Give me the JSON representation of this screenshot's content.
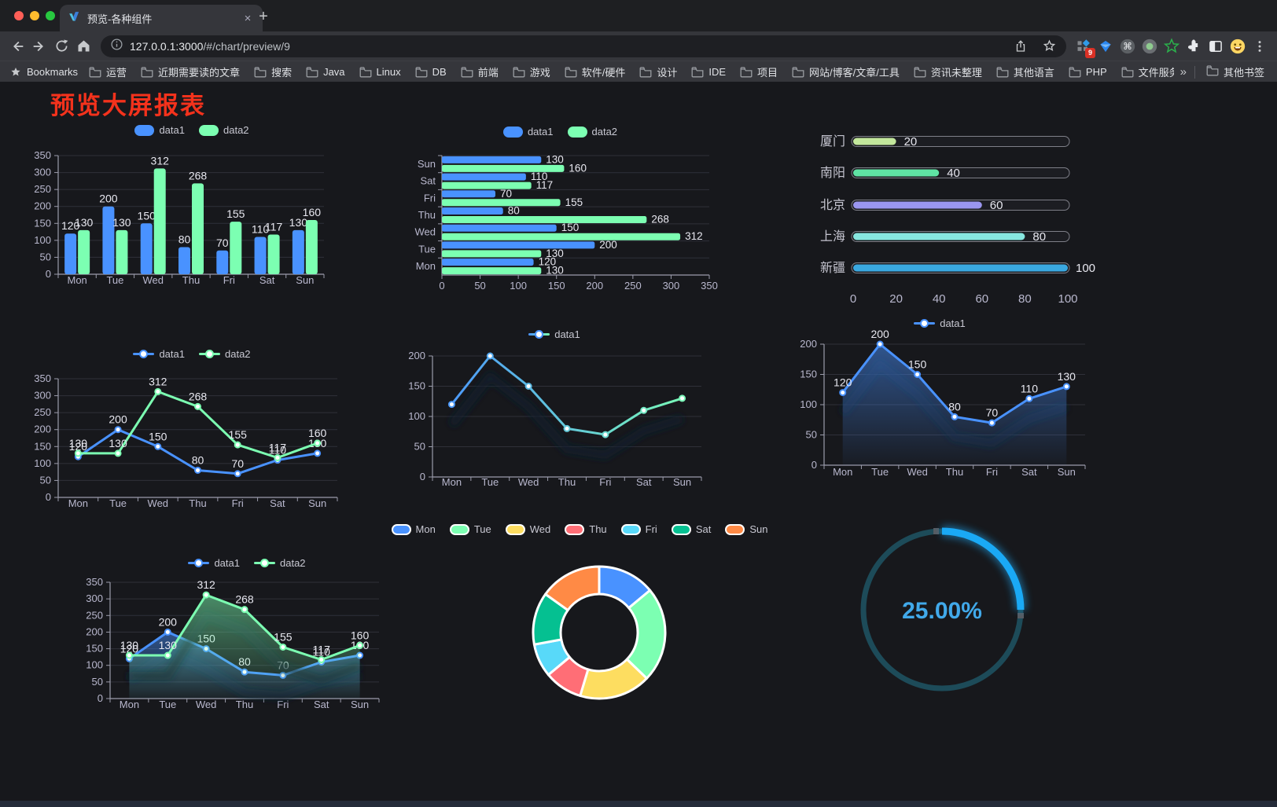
{
  "browser": {
    "tab_title": "预览-各种组件",
    "tab_close": "×",
    "new_tab": "+",
    "url_host": "127.0.0.1:3000",
    "url_path": "/#/chart/preview/9",
    "bookmarks_label": "Bookmarks",
    "bookmark_items": [
      "运营",
      "近期需要读的文章",
      "搜索",
      "Java",
      "Linux",
      "DB",
      "前端",
      "游戏",
      "软件/硬件",
      "设计",
      "IDE",
      "项目",
      "网站/博客/文章/工具",
      "资讯未整理",
      "其他语言",
      "PHP",
      "文件服务器"
    ],
    "bookmarks_overflow": "»",
    "other_bookmarks": "其他书签",
    "extension_badge": "9"
  },
  "page": {
    "title": "预览大屏报表",
    "title_color": "#f4321c",
    "background": "#17181c"
  },
  "chart_data": [
    {
      "id": "bar-weekly",
      "type": "bar",
      "categories": [
        "Mon",
        "Tue",
        "Wed",
        "Thu",
        "Fri",
        "Sat",
        "Sun"
      ],
      "series": [
        {
          "name": "data1",
          "color": "#4992ff",
          "values": [
            120,
            200,
            150,
            80,
            70,
            110,
            130
          ]
        },
        {
          "name": "data2",
          "color": "#7cffb2",
          "values": [
            130,
            130,
            312,
            268,
            155,
            117,
            160
          ]
        }
      ],
      "ylim": [
        0,
        350
      ],
      "yticks": [
        0,
        50,
        100,
        150,
        200,
        250,
        300,
        350
      ],
      "legend_position": "top",
      "grid": true
    },
    {
      "id": "hbar-weekly",
      "type": "bar-horizontal",
      "categories": [
        "Sun",
        "Sat",
        "Fri",
        "Thu",
        "Wed",
        "Tue",
        "Mon"
      ],
      "series": [
        {
          "name": "data1",
          "color": "#4992ff",
          "values": [
            130,
            110,
            70,
            80,
            150,
            200,
            120
          ]
        },
        {
          "name": "data2",
          "color": "#7cffb2",
          "values": [
            160,
            117,
            155,
            268,
            312,
            130,
            130
          ]
        }
      ],
      "xlim": [
        0,
        350
      ],
      "xticks": [
        0,
        50,
        100,
        150,
        200,
        250,
        300,
        350
      ],
      "legend_position": "top",
      "grid": true
    },
    {
      "id": "progress-cities",
      "type": "bar-horizontal",
      "items": [
        {
          "label": "厦门",
          "value": 20,
          "color": "#c3e79c"
        },
        {
          "label": "南阳",
          "value": 40,
          "color": "#5fe3a4"
        },
        {
          "label": "北京",
          "value": 60,
          "color": "#9a96f0"
        },
        {
          "label": "上海",
          "value": 80,
          "color": "#87e6df"
        },
        {
          "label": "新疆",
          "value": 100,
          "color": "#3aa8e0"
        }
      ],
      "xlim": [
        0,
        100
      ],
      "xticks": [
        0,
        20,
        40,
        60,
        80,
        100
      ]
    },
    {
      "id": "line-weekly",
      "type": "line",
      "categories": [
        "Mon",
        "Tue",
        "Wed",
        "Thu",
        "Fri",
        "Sat",
        "Sun"
      ],
      "series": [
        {
          "name": "data1",
          "color": "#4992ff",
          "values": [
            120,
            200,
            150,
            80,
            70,
            110,
            130
          ]
        },
        {
          "name": "data2",
          "color": "#7cffb2",
          "values": [
            130,
            130,
            312,
            268,
            155,
            117,
            160
          ]
        }
      ],
      "ylim": [
        0,
        350
      ],
      "yticks": [
        0,
        50,
        100,
        150,
        200,
        250,
        300,
        350
      ],
      "legend_position": "top",
      "grid": true
    },
    {
      "id": "line-gradient",
      "type": "line",
      "categories": [
        "Mon",
        "Tue",
        "Wed",
        "Thu",
        "Fri",
        "Sat",
        "Sun"
      ],
      "series": [
        {
          "name": "data1",
          "colors": [
            "#4992ff",
            "#7cffb2"
          ],
          "values": [
            120,
            200,
            150,
            80,
            70,
            110,
            130
          ]
        }
      ],
      "ylim": [
        0,
        200
      ],
      "yticks": [
        0,
        50,
        100,
        150,
        200
      ],
      "legend_position": "top",
      "grid": true
    },
    {
      "id": "area-single",
      "type": "area",
      "categories": [
        "Mon",
        "Tue",
        "Wed",
        "Thu",
        "Fri",
        "Sat",
        "Sun"
      ],
      "series": [
        {
          "name": "data1",
          "color": "#4992ff",
          "values": [
            120,
            200,
            150,
            80,
            70,
            110,
            130
          ]
        }
      ],
      "ylim": [
        0,
        200
      ],
      "yticks": [
        0,
        50,
        100,
        150,
        200
      ],
      "legend_position": "top",
      "grid": true
    },
    {
      "id": "area-double",
      "type": "area",
      "categories": [
        "Mon",
        "Tue",
        "Wed",
        "Thu",
        "Fri",
        "Sat",
        "Sun"
      ],
      "series": [
        {
          "name": "data1",
          "color": "#4992ff",
          "values": [
            120,
            200,
            150,
            80,
            70,
            110,
            130
          ]
        },
        {
          "name": "data2",
          "color": "#7cffb2",
          "values": [
            130,
            130,
            312,
            268,
            155,
            117,
            160
          ]
        }
      ],
      "ylim": [
        0,
        350
      ],
      "yticks": [
        0,
        50,
        100,
        150,
        200,
        250,
        300,
        350
      ],
      "legend_position": "top",
      "grid": true
    },
    {
      "id": "pie-weekly",
      "type": "pie",
      "labels": [
        "Mon",
        "Tue",
        "Wed",
        "Thu",
        "Fri",
        "Sat",
        "Sun"
      ],
      "values": [
        120,
        200,
        150,
        80,
        70,
        110,
        130
      ],
      "colors": [
        "#4992ff",
        "#7cffb2",
        "#fddd60",
        "#ff6e76",
        "#58d9f9",
        "#05c091",
        "#ff8a45"
      ],
      "border_color": "#ffffff",
      "legend_position": "top"
    },
    {
      "id": "gauge-percent",
      "type": "gauge",
      "value": 25,
      "max": 100,
      "label": "25.00%",
      "color": "#1aa9f5",
      "track_color": "#1d4b59",
      "text_color": "#41a9ea"
    }
  ]
}
